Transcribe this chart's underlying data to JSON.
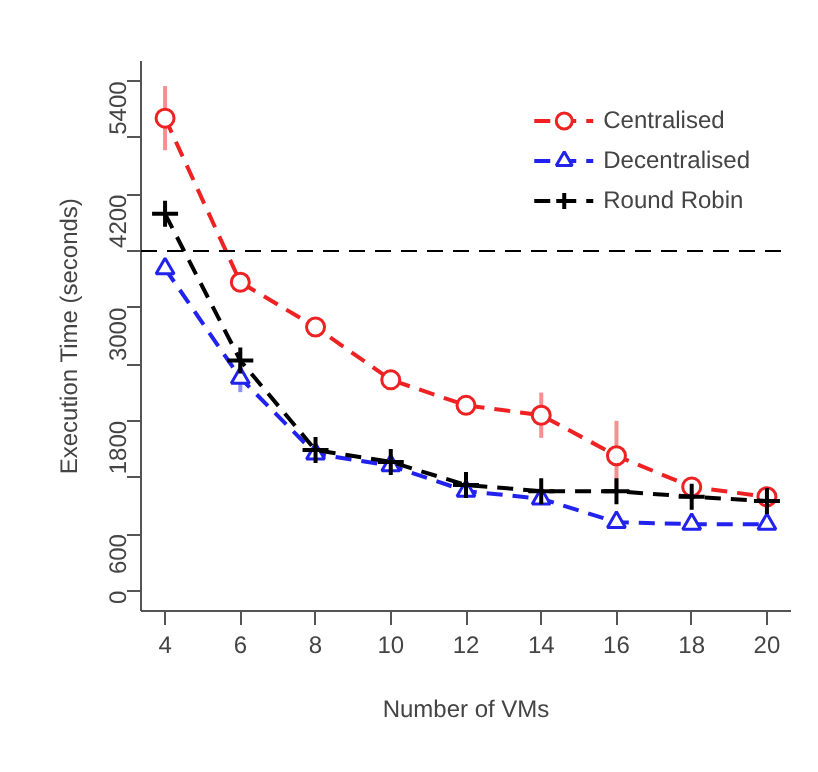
{
  "chart_data": {
    "type": "line",
    "xlabel": "Number of VMs",
    "ylabel": "Execution Time (seconds)",
    "x": [
      4,
      6,
      8,
      10,
      12,
      14,
      16,
      18,
      20
    ],
    "series": [
      {
        "name": "Centralised",
        "color": "#ee2222",
        "marker": "circle",
        "values": [
          5010,
          3270,
          2795,
          2235,
          1965,
          1860,
          1430,
          1100,
          995
        ],
        "errors": [
          340,
          null,
          null,
          null,
          null,
          240,
          370,
          null,
          null
        ]
      },
      {
        "name": "Decentralised",
        "color": "#2222ee",
        "marker": "triangle",
        "values": [
          3415,
          2255,
          1450,
          1325,
          1055,
          975,
          725,
          705,
          705
        ],
        "errors": [
          null,
          150,
          null,
          null,
          null,
          null,
          null,
          null,
          null
        ]
      },
      {
        "name": "Round Robin",
        "color": "#000000",
        "marker": "cross",
        "values": [
          3995,
          2440,
          1490,
          1365,
          1120,
          1055,
          1055,
          995,
          950
        ]
      }
    ],
    "line_style": "dashed",
    "ref_lines": [
      {
        "axis": "y",
        "value": 3600,
        "color": "#000000",
        "line_style": "dashed"
      }
    ],
    "xlim": [
      3.36,
      20.64
    ],
    "ylim": [
      -216,
      5616
    ],
    "xticks": [
      4,
      6,
      8,
      10,
      12,
      14,
      16,
      18,
      20
    ],
    "yticks": [
      0,
      600,
      {
        "value": 1200,
        "label": null
      },
      1800,
      {
        "value": 2400,
        "label": null
      },
      3000,
      {
        "value": 3600,
        "label": null
      },
      4200,
      {
        "value": 4800,
        "label": null
      },
      5400
    ],
    "grid": false,
    "legend": "top right"
  }
}
